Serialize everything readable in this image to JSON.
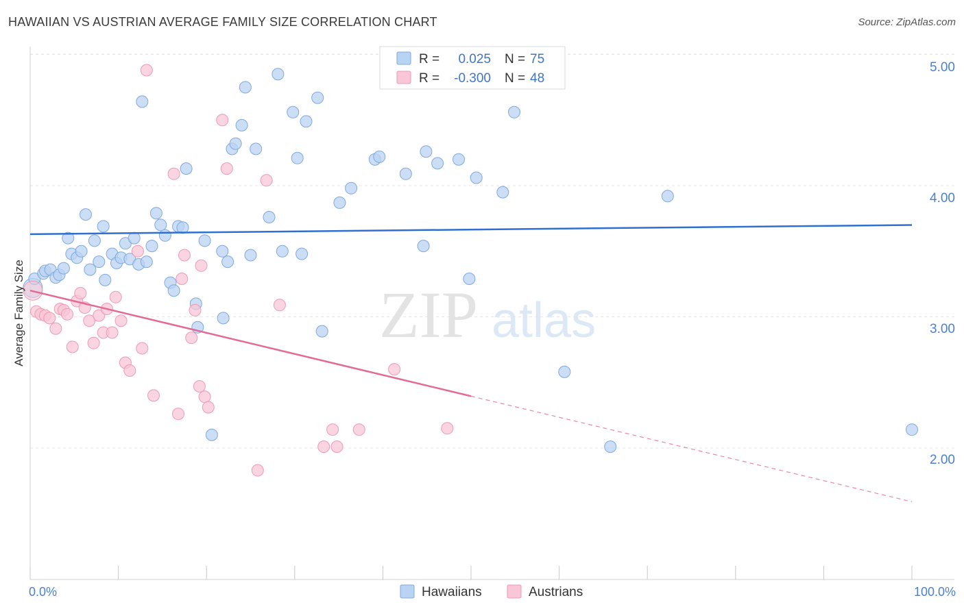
{
  "title": "HAWAIIAN VS AUSTRIAN AVERAGE FAMILY SIZE CORRELATION CHART",
  "source": "Source: ZipAtlas.com",
  "watermark": {
    "zip": "ZIP",
    "atlas": "atlas"
  },
  "legend": {
    "rows": [
      {
        "r_label": "R =",
        "r_value": "0.025",
        "n_label": "N =",
        "n_value": "75"
      },
      {
        "r_label": "R =",
        "r_value": "-0.300",
        "n_label": "N =",
        "n_value": "48"
      }
    ]
  },
  "colors": {
    "hawaiians_fill": "#b9d3f2",
    "hawaiians_stroke": "#7ea9df",
    "hawaiians_line": "#2f6fcf",
    "austrians_fill": "#f8c6d6",
    "austrians_stroke": "#ec9bb5",
    "austrians_line": "#e26a95"
  },
  "chart_data": {
    "type": "scatter",
    "xlabel": "",
    "ylabel": "Average Family Size",
    "x_tick_labels": [
      "0.0%",
      "100.0%"
    ],
    "y_tick_labels": [
      "2.00",
      "3.00",
      "4.00",
      "5.00"
    ],
    "xlim": [
      0,
      100
    ],
    "ylim": [
      1.0,
      5.12
    ],
    "yticks": [
      2,
      3,
      4,
      5
    ],
    "grid": true,
    "legend_position": "top-center",
    "series": [
      {
        "name": "Hawaiians",
        "trend": {
          "x": [
            0,
            100
          ],
          "y": [
            3.63,
            3.7
          ],
          "solid_until": 100
        },
        "points": [
          [
            0.3,
            3.22
          ],
          [
            0.5,
            3.29
          ],
          [
            1.5,
            3.33
          ],
          [
            1.7,
            3.35
          ],
          [
            2.3,
            3.36
          ],
          [
            2.9,
            3.3
          ],
          [
            3.3,
            3.32
          ],
          [
            3.8,
            3.37
          ],
          [
            4.3,
            3.6
          ],
          [
            4.7,
            3.48
          ],
          [
            5.3,
            3.45
          ],
          [
            5.8,
            3.5
          ],
          [
            6.3,
            3.78
          ],
          [
            6.8,
            3.36
          ],
          [
            7.3,
            3.58
          ],
          [
            7.8,
            3.42
          ],
          [
            8.3,
            3.69
          ],
          [
            8.5,
            3.28
          ],
          [
            9.3,
            3.48
          ],
          [
            9.8,
            3.41
          ],
          [
            10.3,
            3.45
          ],
          [
            10.8,
            3.56
          ],
          [
            11.3,
            3.44
          ],
          [
            11.8,
            3.6
          ],
          [
            12.3,
            3.4
          ],
          [
            12.7,
            4.64
          ],
          [
            13.2,
            3.42
          ],
          [
            13.8,
            3.54
          ],
          [
            14.3,
            3.79
          ],
          [
            14.8,
            3.7
          ],
          [
            15.3,
            3.62
          ],
          [
            15.9,
            3.26
          ],
          [
            16.3,
            3.2
          ],
          [
            16.8,
            3.69
          ],
          [
            17.3,
            3.68
          ],
          [
            17.7,
            4.13
          ],
          [
            18.8,
            3.1
          ],
          [
            19.0,
            2.92
          ],
          [
            19.8,
            3.58
          ],
          [
            20.6,
            2.1
          ],
          [
            21.8,
            3.5
          ],
          [
            21.9,
            2.99
          ],
          [
            22.4,
            3.42
          ],
          [
            22.9,
            4.28
          ],
          [
            23.3,
            4.32
          ],
          [
            24.0,
            4.46
          ],
          [
            24.4,
            4.75
          ],
          [
            25.0,
            3.47
          ],
          [
            25.6,
            4.28
          ],
          [
            27.1,
            3.76
          ],
          [
            28.1,
            4.85
          ],
          [
            28.6,
            3.5
          ],
          [
            29.8,
            4.56
          ],
          [
            30.3,
            4.21
          ],
          [
            30.8,
            3.48
          ],
          [
            31.3,
            4.49
          ],
          [
            32.6,
            4.67
          ],
          [
            33.1,
            2.89
          ],
          [
            35.1,
            3.87
          ],
          [
            36.4,
            3.98
          ],
          [
            39.1,
            4.2
          ],
          [
            39.6,
            4.22
          ],
          [
            42.6,
            4.09
          ],
          [
            44.6,
            3.54
          ],
          [
            44.9,
            4.26
          ],
          [
            46.2,
            4.17
          ],
          [
            48.6,
            4.2
          ],
          [
            49.8,
            3.29
          ],
          [
            50.6,
            4.06
          ],
          [
            53.6,
            3.95
          ],
          [
            54.9,
            4.56
          ],
          [
            60.6,
            2.58
          ],
          [
            65.8,
            2.01
          ],
          [
            72.3,
            3.92
          ],
          [
            100.0,
            2.14
          ]
        ]
      },
      {
        "name": "Austrians",
        "trend": {
          "x": [
            0,
            100
          ],
          "y": [
            3.2,
            1.59
          ],
          "solid_until": 50
        },
        "points": [
          [
            0.3,
            3.2
          ],
          [
            0.7,
            3.04
          ],
          [
            1.2,
            3.02
          ],
          [
            1.7,
            3.01
          ],
          [
            2.2,
            2.99
          ],
          [
            2.9,
            2.91
          ],
          [
            3.4,
            3.06
          ],
          [
            3.8,
            3.05
          ],
          [
            4.2,
            3.02
          ],
          [
            4.8,
            2.77
          ],
          [
            5.3,
            3.12
          ],
          [
            5.7,
            3.18
          ],
          [
            6.2,
            3.07
          ],
          [
            6.7,
            2.97
          ],
          [
            7.2,
            2.8
          ],
          [
            7.8,
            3.01
          ],
          [
            8.3,
            2.88
          ],
          [
            8.7,
            3.06
          ],
          [
            9.3,
            2.88
          ],
          [
            9.7,
            3.15
          ],
          [
            10.3,
            2.97
          ],
          [
            10.8,
            2.65
          ],
          [
            11.3,
            2.59
          ],
          [
            12.2,
            3.5
          ],
          [
            12.7,
            2.76
          ],
          [
            13.2,
            4.88
          ],
          [
            14.0,
            2.4
          ],
          [
            16.3,
            4.09
          ],
          [
            16.8,
            2.26
          ],
          [
            17.2,
            3.29
          ],
          [
            17.5,
            3.47
          ],
          [
            18.3,
            2.84
          ],
          [
            18.7,
            3.05
          ],
          [
            19.2,
            2.47
          ],
          [
            19.4,
            3.39
          ],
          [
            19.8,
            2.39
          ],
          [
            20.2,
            2.31
          ],
          [
            21.8,
            4.5
          ],
          [
            22.3,
            4.13
          ],
          [
            25.8,
            1.83
          ],
          [
            26.8,
            4.04
          ],
          [
            28.3,
            3.09
          ],
          [
            33.3,
            2.01
          ],
          [
            34.3,
            2.14
          ],
          [
            34.8,
            2.01
          ],
          [
            37.3,
            2.14
          ],
          [
            41.3,
            2.6
          ],
          [
            47.3,
            2.15
          ]
        ]
      }
    ]
  }
}
